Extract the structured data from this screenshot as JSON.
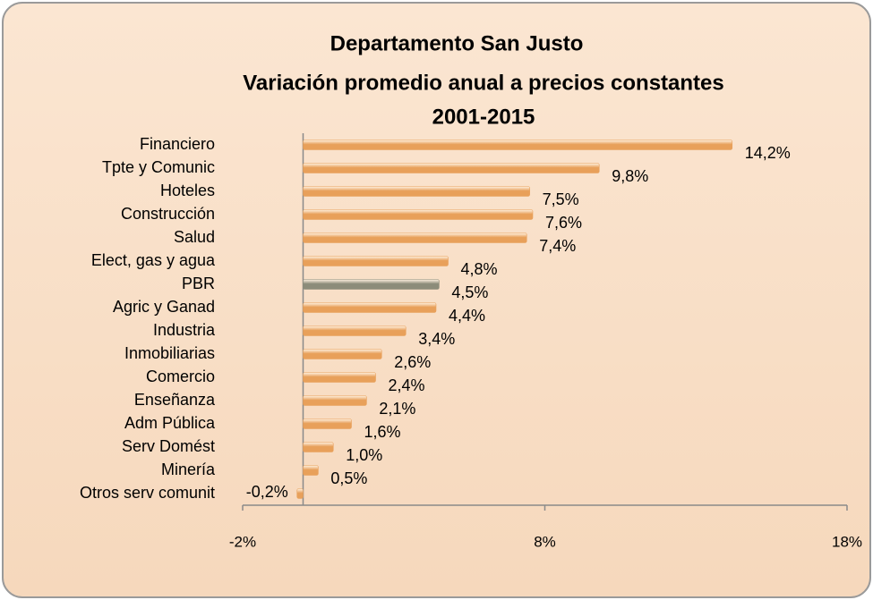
{
  "chart_data": {
    "type": "bar",
    "orientation": "horizontal",
    "title": [
      "Departamento San Justo",
      "Variación promedio anual a precios constantes",
      "2001-2015"
    ],
    "categories": [
      "Financiero",
      "Tpte y Comunic",
      "Hoteles",
      "Construcción",
      "Salud",
      "Elect, gas y agua",
      "PBR",
      "Agric y Ganad",
      "Industria",
      "Inmobiliarias",
      "Comercio",
      "Enseñanza",
      "Adm Pública",
      "Serv Domést",
      "Minería",
      "Otros serv comunit"
    ],
    "values": [
      14.2,
      9.8,
      7.5,
      7.6,
      7.4,
      4.8,
      4.5,
      4.4,
      3.4,
      2.6,
      2.4,
      2.1,
      1.6,
      1.0,
      0.5,
      -0.2
    ],
    "value_labels": [
      "14,2%",
      "9,8%",
      "7,5%",
      "7,6%",
      "7,4%",
      "4,8%",
      "4,5%",
      "4,4%",
      "3,4%",
      "2,6%",
      "2,4%",
      "2,1%",
      "1,6%",
      "1,0%",
      "0,5%",
      "-0,2%"
    ],
    "colors": [
      "#e8a05a",
      "#e8a05a",
      "#e8a05a",
      "#e8a05a",
      "#e8a05a",
      "#e8a05a",
      "#8c8c7a",
      "#e8a05a",
      "#e8a05a",
      "#e8a05a",
      "#e8a05a",
      "#e8a05a",
      "#e8a05a",
      "#e8a05a",
      "#e8a05a",
      "#e8a05a"
    ],
    "xlim": [
      -2,
      18
    ],
    "xticks": [
      {
        "value": -2,
        "label": "-2%"
      },
      {
        "value": 8,
        "label": "8%"
      },
      {
        "value": 18,
        "label": "18%"
      }
    ]
  }
}
